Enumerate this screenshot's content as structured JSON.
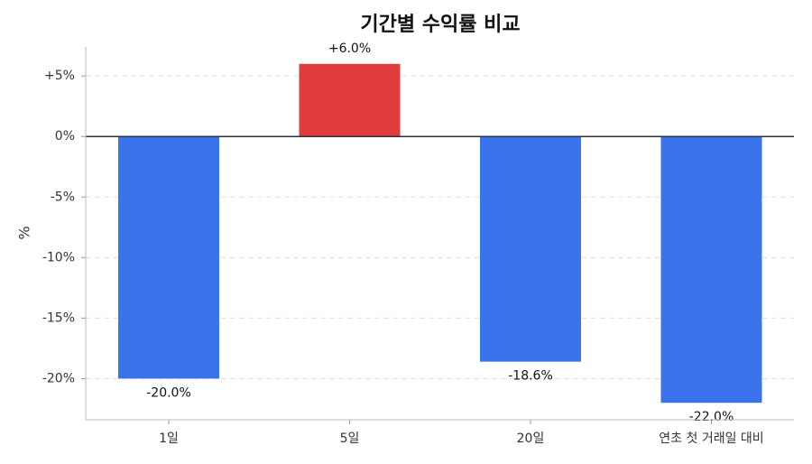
{
  "chart_data": {
    "type": "bar",
    "title": "기간별 수익률 비교",
    "y_label": "%",
    "categories": [
      "1일",
      "5일",
      "20일",
      "연초 첫 거래일 대비"
    ],
    "values": [
      -20.0,
      6.0,
      -18.6,
      -22.0
    ],
    "value_labels": [
      "-20.0%",
      "+6.0%",
      "-18.6%",
      "-22.0%"
    ],
    "colors": [
      "#3b73ec",
      "#e03c3c",
      "#3b73ec",
      "#3b73ec"
    ],
    "ylim": [
      -23.4,
      7.4
    ],
    "yticks": [
      {
        "value": 5,
        "label": "+5%"
      },
      {
        "value": 0,
        "label": "0%"
      },
      {
        "value": -5,
        "label": "-5%"
      },
      {
        "value": -10,
        "label": "-10%"
      },
      {
        "value": -15,
        "label": "-15%"
      },
      {
        "value": -20,
        "label": "-20%"
      }
    ],
    "grid": true
  }
}
